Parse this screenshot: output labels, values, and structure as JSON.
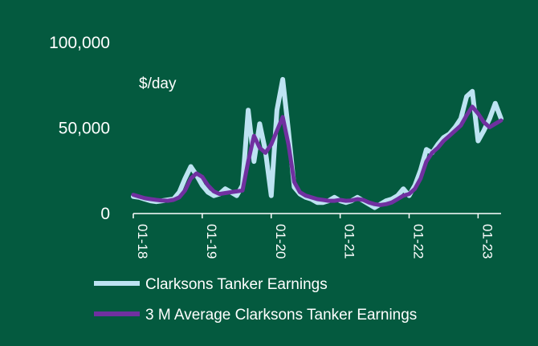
{
  "chart_data": {
    "type": "line",
    "unit_label": "$/day",
    "ylim": [
      0,
      100000
    ],
    "y_ticks": [
      "100,000",
      "50,000",
      "0"
    ],
    "y_tick_values": [
      100000,
      50000,
      0
    ],
    "x_ticks": [
      "01-18",
      "01-19",
      "01-20",
      "01-21",
      "01-22",
      "01-23"
    ],
    "x_tick_values": [
      "2018-01",
      "2019-01",
      "2020-01",
      "2021-01",
      "2022-01",
      "2023-01"
    ],
    "x": [
      "2018-01",
      "2018-02",
      "2018-03",
      "2018-04",
      "2018-05",
      "2018-06",
      "2018-07",
      "2018-08",
      "2018-09",
      "2018-10",
      "2018-11",
      "2018-12",
      "2019-01",
      "2019-02",
      "2019-03",
      "2019-04",
      "2019-05",
      "2019-06",
      "2019-07",
      "2019-08",
      "2019-09",
      "2019-10",
      "2019-11",
      "2019-12",
      "2020-01",
      "2020-02",
      "2020-03",
      "2020-04",
      "2020-05",
      "2020-06",
      "2020-07",
      "2020-08",
      "2020-09",
      "2020-10",
      "2020-11",
      "2020-12",
      "2021-01",
      "2021-02",
      "2021-03",
      "2021-04",
      "2021-05",
      "2021-06",
      "2021-07",
      "2021-08",
      "2021-09",
      "2021-10",
      "2021-11",
      "2021-12",
      "2022-01",
      "2022-02",
      "2022-03",
      "2022-04",
      "2022-05",
      "2022-06",
      "2022-07",
      "2022-08",
      "2022-09",
      "2022-10",
      "2022-11",
      "2022-12",
      "2023-01",
      "2023-02",
      "2023-03",
      "2023-04",
      "2023-05"
    ],
    "grid": false,
    "legend_position": "bottom",
    "series": [
      {
        "name": "Clarksons Tanker Earnings",
        "color": "#bde3f2",
        "values": [
          9500,
          9000,
          8000,
          7000,
          6500,
          7000,
          7500,
          8000,
          12000,
          20000,
          27000,
          22000,
          16000,
          12000,
          10000,
          11000,
          14000,
          12000,
          10000,
          16000,
          60000,
          30000,
          52000,
          36000,
          10000,
          60000,
          78000,
          48000,
          15000,
          11000,
          9000,
          8000,
          6000,
          6000,
          7000,
          9000,
          7000,
          6000,
          7000,
          9000,
          7000,
          5000,
          3000,
          5000,
          7000,
          8000,
          10000,
          14000,
          10000,
          16000,
          25000,
          37000,
          35000,
          40000,
          44000,
          46000,
          50000,
          55000,
          68000,
          71000,
          42000,
          48000,
          55000,
          64000,
          55000
        ]
      },
      {
        "name": "3 M Average Clarksons Tanker Earnings",
        "color": "#7030a0",
        "values": [
          10500,
          9500,
          8500,
          8000,
          7500,
          7200,
          7000,
          7500,
          9000,
          13000,
          20000,
          23000,
          21000,
          16000,
          12500,
          11000,
          11500,
          12000,
          12500,
          13000,
          30000,
          45000,
          38000,
          35000,
          40000,
          48000,
          56000,
          40000,
          18000,
          12000,
          10000,
          9000,
          8000,
          7500,
          7000,
          7000,
          7500,
          7000,
          7200,
          8000,
          7500,
          6000,
          5000,
          4500,
          5000,
          6000,
          8000,
          10000,
          11000,
          14000,
          20000,
          30000,
          35000,
          38000,
          42000,
          45000,
          48000,
          51000,
          57000,
          62000,
          58000,
          53000,
          50000,
          52000,
          54000
        ]
      }
    ]
  }
}
